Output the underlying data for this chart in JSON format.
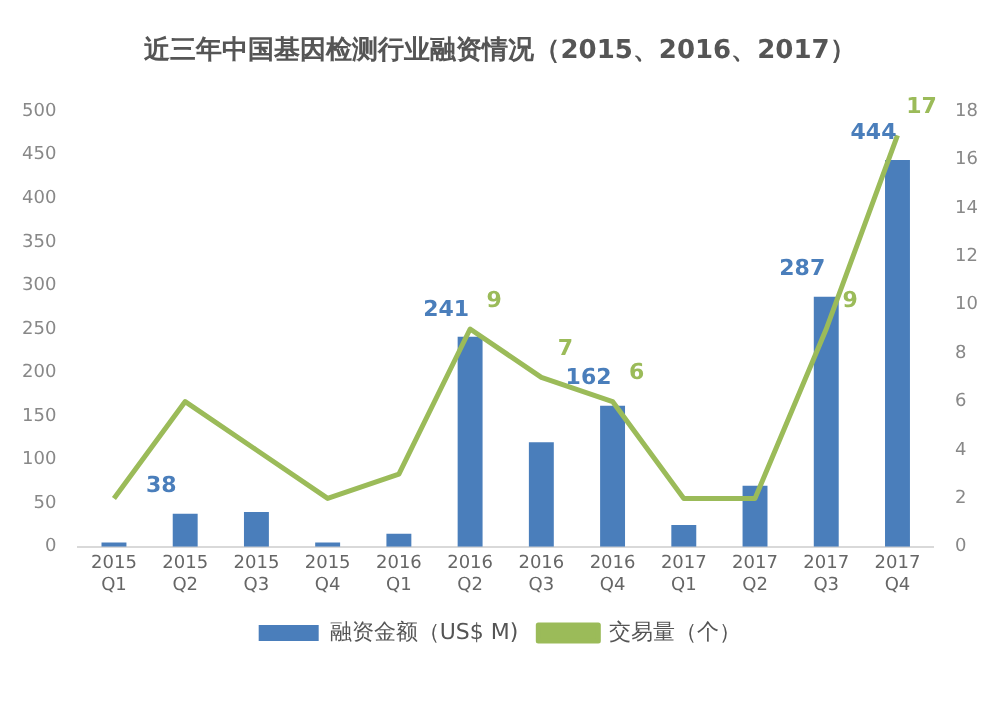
{
  "chart_data": {
    "type": "bar",
    "title": "近三年中国基因检测行业融资情况（2015、2016、2017）",
    "categories": [
      "2015\nQ1",
      "2015\nQ2",
      "2015\nQ3",
      "2015\nQ4",
      "2016\nQ1",
      "2016\nQ2",
      "2016\nQ3",
      "2016\nQ4",
      "2017\nQ1",
      "2017\nQ2",
      "2017\nQ3",
      "2017\nQ4"
    ],
    "series": [
      {
        "name": "融资金额（US$ M)",
        "type": "bar",
        "color": "#4a7ebb",
        "values": [
          5,
          38,
          40,
          5,
          15,
          241,
          120,
          162,
          25,
          70,
          287,
          444
        ],
        "value_labels": [
          null,
          "38",
          null,
          null,
          null,
          "241",
          null,
          "162",
          null,
          null,
          "287",
          "444"
        ]
      },
      {
        "name": "交易量（个）",
        "type": "line",
        "axis": "y2",
        "color": "#9bbb59",
        "values": [
          2,
          6,
          4,
          2,
          3,
          9,
          7,
          6,
          2,
          2,
          9,
          17
        ],
        "value_labels": [
          null,
          null,
          null,
          null,
          null,
          "9",
          "7",
          "6",
          null,
          null,
          "9",
          "17"
        ]
      }
    ],
    "ylim": [
      0,
      500
    ],
    "yticks": [
      0,
      50,
      100,
      150,
      200,
      250,
      300,
      350,
      400,
      450,
      500
    ],
    "y2lim": [
      0,
      18
    ],
    "y2ticks": [
      0,
      2,
      4,
      6,
      8,
      10,
      12,
      14,
      16,
      18
    ],
    "grid": false,
    "legend": "bottom",
    "marker": "none"
  }
}
